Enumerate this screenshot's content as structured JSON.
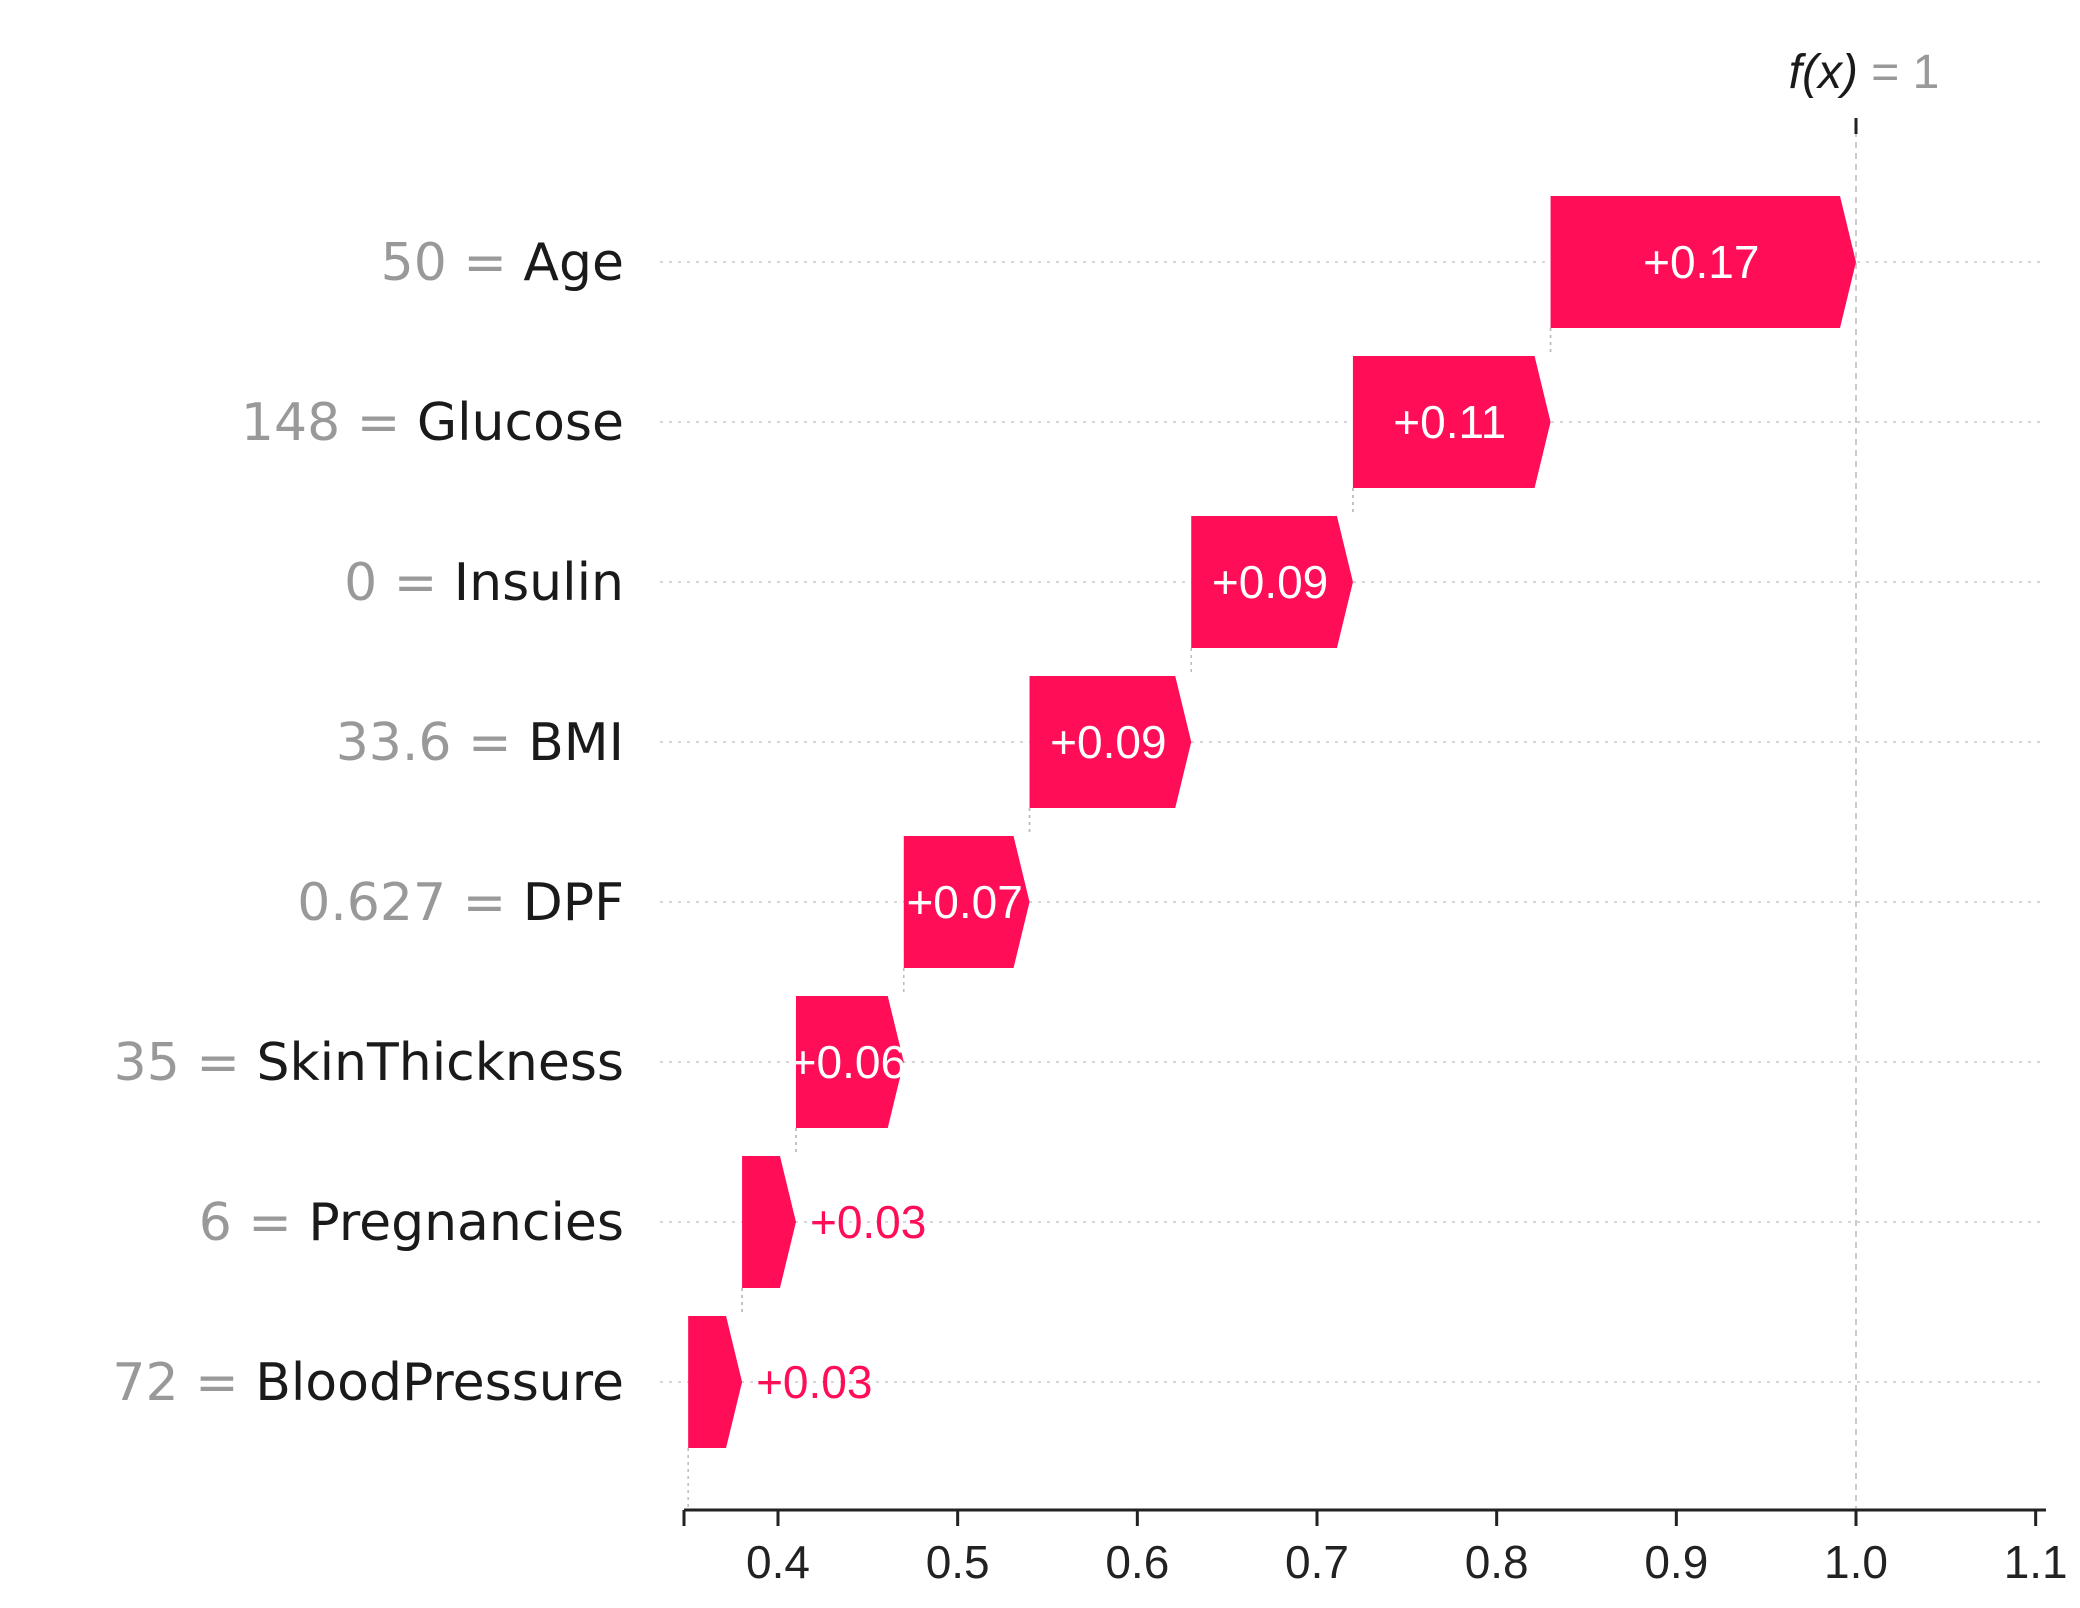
{
  "chart_data": {
    "type": "waterfall",
    "base_value": 0.35,
    "output_label": "f(x)",
    "output_eq": "=",
    "output_value": "1",
    "bar_color": "#ff0d57",
    "features": [
      {
        "value": "50",
        "name": "Age",
        "contribution": 0.17,
        "label": "+0.17"
      },
      {
        "value": "148",
        "name": "Glucose",
        "contribution": 0.11,
        "label": "+0.11"
      },
      {
        "value": "0",
        "name": "Insulin",
        "contribution": 0.09,
        "label": "+0.09"
      },
      {
        "value": "33.6",
        "name": "BMI",
        "contribution": 0.09,
        "label": "+0.09"
      },
      {
        "value": "0.627",
        "name": "DPF",
        "contribution": 0.07,
        "label": "+0.07"
      },
      {
        "value": "35",
        "name": "SkinThickness",
        "contribution": 0.06,
        "label": "+0.06"
      },
      {
        "value": "6",
        "name": "Pregnancies",
        "contribution": 0.03,
        "label": "+0.03"
      },
      {
        "value": "72",
        "name": "BloodPressure",
        "contribution": 0.03,
        "label": "+0.03"
      }
    ],
    "xlim": [
      0.35,
      1.1
    ],
    "xticks": [
      0.4,
      0.5,
      0.6,
      0.7,
      0.8,
      0.9,
      1.0,
      1.1
    ],
    "xtick_labels": [
      "0.4",
      "0.5",
      "0.6",
      "0.7",
      "0.8",
      "0.9",
      "1.0",
      "1.1"
    ]
  }
}
